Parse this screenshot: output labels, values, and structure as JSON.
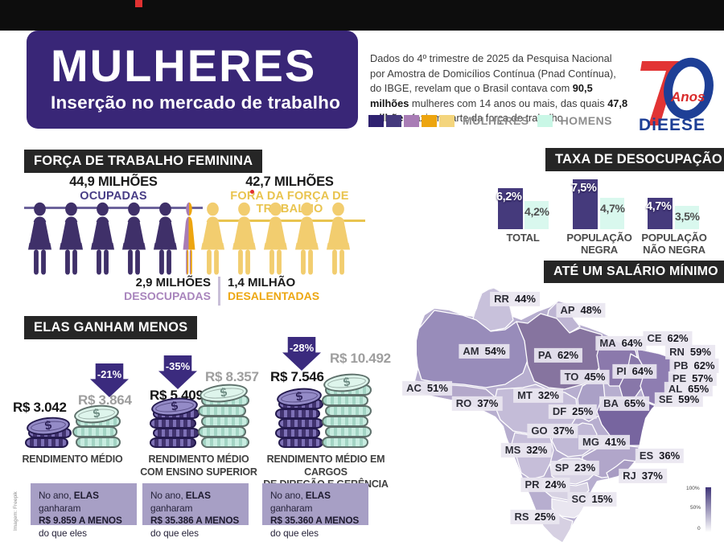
{
  "header": {
    "title": "MULHERES",
    "subtitle": "Inserção no mercado de trabalho",
    "intro_parts": [
      {
        "text": "Dados do 4º trimestre de 2025 da Pesquisa Nacional por Amostra de Domicílios Contínua (Pnad Contínua), do IBGE, revelam que o Brasil contava com ",
        "bold": false
      },
      {
        "text": "90,5 milhões",
        "bold": true
      },
      {
        "text": " mulheres com 14 anos ou mais, das quais ",
        "bold": false
      },
      {
        "text": "47,8 milhões",
        "bold": true
      },
      {
        "text": " faziam parte da força de trabalho",
        "bold": false
      }
    ],
    "logo": {
      "number": "70",
      "anos": "Anos",
      "name": "DiEESE"
    },
    "legend": {
      "mulheres_label": "MULHERES",
      "homens_label": "HOMENS",
      "mulheres_colors": [
        "#2f2270",
        "#453a7d",
        "#a87cb5",
        "#eda50f",
        "#f4d57d"
      ],
      "homens_color": "#c9f7e6"
    }
  },
  "forca": {
    "header": "FORÇA DE TRABALHO FEMININA",
    "ocupadas_value": "44,9 MILHÕES",
    "ocupadas_label": "OCUPADAS",
    "fora_value": "42,7 MILHÕES",
    "fora_label": "FORA DA FORÇA DE TRABALHO",
    "desocupadas_value": "2,9 MILHÕES",
    "desocupadas_label": "DESOCUPADAS",
    "desalentadas_value": "1,4 MILHÃO",
    "desalentadas_label": "DESALENTADAS",
    "figures": {
      "purple_count": 5,
      "yellow_count": 5,
      "split_count": 1
    }
  },
  "taxa": {
    "header": "TAXA DE DESOCUPAÇÃO",
    "groups": [
      {
        "label": "TOTAL",
        "mulheres": 6.2,
        "homens": 4.2,
        "mulheres_display": "6,2%",
        "homens_display": "4,2%"
      },
      {
        "label": "POPULAÇÃO\nNEGRA",
        "mulheres": 7.5,
        "homens": 4.7,
        "mulheres_display": "7,5%",
        "homens_display": "4,7%"
      },
      {
        "label": "POPULAÇÃO\nNÃO NEGRA",
        "mulheres": 4.7,
        "homens": 3.5,
        "mulheres_display": "4,7%",
        "homens_display": "3,5%"
      }
    ]
  },
  "ganham": {
    "header": "ELAS GANHAM MENOS",
    "groups": [
      {
        "gap": "-21%",
        "mulheres": "R$ 3.042",
        "homens": "R$ 3.864",
        "caption": "RENDIMENTO MÉDIO",
        "note_lines": [
          [
            {
              "t": "No ano, ",
              "b": false
            },
            {
              "t": "ELAS",
              "b": true
            },
            {
              "t": " ganharam",
              "b": false
            }
          ],
          [
            {
              "t": "R$ 9.859 A MENOS",
              "b": true
            }
          ],
          [
            {
              "t": "do que eles",
              "b": false
            }
          ]
        ]
      },
      {
        "gap": "-35%",
        "mulheres": "R$ 5.409",
        "homens": "R$ 8.357",
        "caption": "RENDIMENTO MÉDIO\nCOM ENSINO SUPERIOR",
        "note_lines": [
          [
            {
              "t": "No ano, ",
              "b": false
            },
            {
              "t": "ELAS",
              "b": true
            },
            {
              "t": " ganharam",
              "b": false
            }
          ],
          [
            {
              "t": "R$ 35.386 A MENOS",
              "b": true
            }
          ],
          [
            {
              "t": "do que eles",
              "b": false
            }
          ]
        ]
      },
      {
        "gap": "-28%",
        "mulheres": "R$ 7.546",
        "homens": "R$ 10.492",
        "caption": "RENDIMENTO MÉDIO EM CARGOS\nDE DIREÇÃO E GERÊNCIA",
        "note_lines": [
          [
            {
              "t": "No ano, ",
              "b": false
            },
            {
              "t": "ELAS",
              "b": true
            },
            {
              "t": " ganharam",
              "b": false
            }
          ],
          [
            {
              "t": "R$ 35.360 A MENOS",
              "b": true
            }
          ],
          [
            {
              "t": "do que eles",
              "b": false
            }
          ]
        ]
      }
    ]
  },
  "salario": {
    "header": "ATÉ UM SALÁRIO MÍNIMO",
    "states": [
      {
        "code": "RR",
        "display": "44%"
      },
      {
        "code": "AP",
        "display": "48%"
      },
      {
        "code": "AM",
        "display": "54%"
      },
      {
        "code": "PA",
        "display": "62%"
      },
      {
        "code": "MA",
        "display": "64%"
      },
      {
        "code": "CE",
        "display": "62%"
      },
      {
        "code": "RN",
        "display": "59%"
      },
      {
        "code": "PB",
        "display": "62%"
      },
      {
        "code": "PE",
        "display": "57%"
      },
      {
        "code": "AL",
        "display": "65%"
      },
      {
        "code": "SE",
        "display": "59%"
      },
      {
        "code": "PI",
        "display": "64%"
      },
      {
        "code": "TO",
        "display": "45%"
      },
      {
        "code": "AC",
        "display": "51%"
      },
      {
        "code": "RO",
        "display": "37%"
      },
      {
        "code": "MT",
        "display": "32%"
      },
      {
        "code": "BA",
        "display": "65%"
      },
      {
        "code": "DF",
        "display": "25%"
      },
      {
        "code": "GO",
        "display": "37%"
      },
      {
        "code": "MS",
        "display": "32%"
      },
      {
        "code": "MG",
        "display": "41%"
      },
      {
        "code": "ES",
        "display": "36%"
      },
      {
        "code": "SP",
        "display": "23%"
      },
      {
        "code": "RJ",
        "display": "37%"
      },
      {
        "code": "PR",
        "display": "24%"
      },
      {
        "code": "SC",
        "display": "15%"
      },
      {
        "code": "RS",
        "display": "25%"
      }
    ],
    "scale": {
      "top": "100%",
      "mid": "50%",
      "bottom": "0"
    }
  },
  "credit": "Imagem: Freepik",
  "chart_data": [
    {
      "type": "bar",
      "title": "TAXA DE DESOCUPAÇÃO",
      "categories": [
        "TOTAL",
        "POPULAÇÃO NEGRA",
        "POPULAÇÃO NÃO NEGRA"
      ],
      "series": [
        {
          "name": "MULHERES",
          "values": [
            6.2,
            7.5,
            4.7
          ]
        },
        {
          "name": "HOMENS",
          "values": [
            4.2,
            4.7,
            3.5
          ]
        }
      ],
      "unit": "%",
      "ylim": [
        0,
        8
      ],
      "grid": false,
      "legend_position": "top"
    },
    {
      "type": "bar",
      "title": "FORÇA DE TRABALHO FEMININA (milhões)",
      "categories": [
        "OCUPADAS",
        "DESOCUPADAS",
        "DESALENTADAS",
        "FORA DA FORÇA DE TRABALHO"
      ],
      "values": [
        44.9,
        2.9,
        1.4,
        42.7
      ],
      "unit": "milhões"
    },
    {
      "type": "bar",
      "title": "ELAS GANHAM MENOS — rendimento em R$",
      "categories": [
        "RENDIMENTO MÉDIO",
        "RENDIMENTO MÉDIO COM ENSINO SUPERIOR",
        "RENDIMENTO MÉDIO EM CARGOS DE DIREÇÃO E GERÊNCIA"
      ],
      "series": [
        {
          "name": "MULHERES",
          "values": [
            3042,
            5409,
            7546
          ]
        },
        {
          "name": "HOMENS",
          "values": [
            3864,
            8357,
            10492
          ]
        }
      ],
      "gap_percent": [
        -21,
        -35,
        -28
      ],
      "annual_loss": [
        9859,
        35386,
        35360
      ]
    },
    {
      "type": "heatmap",
      "title": "ATÉ UM SALÁRIO MÍNIMO — % de mulheres por UF",
      "categories": [
        "RR",
        "AP",
        "AM",
        "PA",
        "MA",
        "CE",
        "RN",
        "PB",
        "PE",
        "AL",
        "SE",
        "PI",
        "TO",
        "AC",
        "RO",
        "MT",
        "BA",
        "DF",
        "GO",
        "MS",
        "MG",
        "ES",
        "SP",
        "RJ",
        "PR",
        "SC",
        "RS"
      ],
      "values": [
        44,
        48,
        54,
        62,
        64,
        62,
        59,
        62,
        57,
        65,
        59,
        64,
        45,
        51,
        37,
        32,
        65,
        25,
        37,
        32,
        41,
        36,
        23,
        37,
        24,
        15,
        25
      ],
      "scale": [
        0,
        100
      ],
      "legend_position": "bottom-right"
    }
  ]
}
